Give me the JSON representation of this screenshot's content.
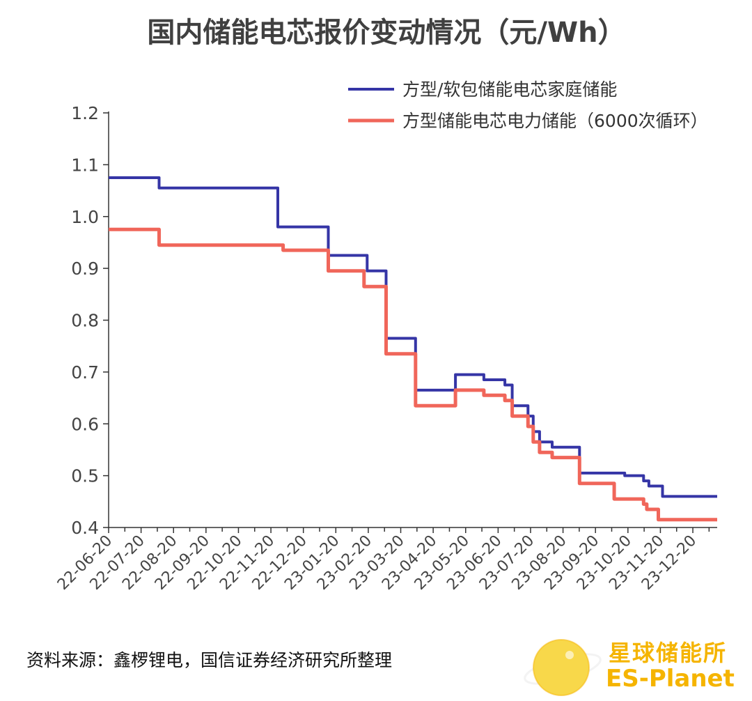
{
  "chart_data": {
    "type": "line",
    "title": "国内储能电芯报价变动情况（元/Wh）",
    "xlabel": "",
    "ylabel": "",
    "ylim": [
      0.4,
      1.2
    ],
    "yticks": [
      "0.4",
      "0.5",
      "0.6",
      "0.7",
      "0.8",
      "0.9",
      "1.0",
      "1.1",
      "1.2"
    ],
    "x_domain": [
      "2022-06-20",
      "2024-01-20"
    ],
    "xtick_labels": [
      "22-06-20",
      "22-07-20",
      "22-08-20",
      "22-09-20",
      "22-10-20",
      "22-11-20",
      "22-12-20",
      "23-01-20",
      "23-02-20",
      "23-03-20",
      "23-04-20",
      "23-05-20",
      "23-06-20",
      "23-07-20",
      "23-08-20",
      "23-09-20",
      "23-10-20",
      "23-11-20",
      "23-12-20"
    ],
    "legend_position": "top-right",
    "grid": false,
    "step": true,
    "series": [
      {
        "name": "方型/软包储能电芯家庭储能",
        "color": "#3535a6",
        "points": [
          [
            "2022-06-20",
            1.075
          ],
          [
            "2022-08-07",
            1.055
          ],
          [
            "2022-11-28",
            0.98
          ],
          [
            "2023-01-15",
            0.925
          ],
          [
            "2023-02-21",
            0.895
          ],
          [
            "2023-03-11",
            0.765
          ],
          [
            "2023-04-08",
            0.665
          ],
          [
            "2023-05-16",
            0.695
          ],
          [
            "2023-06-12",
            0.685
          ],
          [
            "2023-07-02",
            0.675
          ],
          [
            "2023-07-09",
            0.635
          ],
          [
            "2023-07-24",
            0.615
          ],
          [
            "2023-07-29",
            0.585
          ],
          [
            "2023-08-04",
            0.565
          ],
          [
            "2023-08-16",
            0.555
          ],
          [
            "2023-09-11",
            0.505
          ],
          [
            "2023-10-24",
            0.5
          ],
          [
            "2023-11-11",
            0.49
          ],
          [
            "2023-11-16",
            0.48
          ],
          [
            "2023-11-29",
            0.46
          ],
          [
            "2024-01-20",
            0.46
          ]
        ]
      },
      {
        "name": "方型储能电芯电力储能（6000次循环）",
        "color": "#f0665a",
        "points": [
          [
            "2022-06-20",
            0.975
          ],
          [
            "2022-08-07",
            0.945
          ],
          [
            "2022-12-03",
            0.935
          ],
          [
            "2023-01-15",
            0.895
          ],
          [
            "2023-02-18",
            0.865
          ],
          [
            "2023-03-11",
            0.735
          ],
          [
            "2023-04-08",
            0.635
          ],
          [
            "2023-05-16",
            0.665
          ],
          [
            "2023-06-12",
            0.655
          ],
          [
            "2023-07-02",
            0.645
          ],
          [
            "2023-07-09",
            0.615
          ],
          [
            "2023-07-24",
            0.595
          ],
          [
            "2023-07-29",
            0.565
          ],
          [
            "2023-08-04",
            0.545
          ],
          [
            "2023-08-16",
            0.535
          ],
          [
            "2023-09-11",
            0.485
          ],
          [
            "2023-10-14",
            0.455
          ],
          [
            "2023-11-11",
            0.445
          ],
          [
            "2023-11-14",
            0.435
          ],
          [
            "2023-11-25",
            0.415
          ],
          [
            "2024-01-20",
            0.415
          ]
        ]
      }
    ]
  },
  "source_note": "资料来源：鑫椤锂电，国信证券经济研究所整理",
  "watermark": {
    "name_cn": "星球储能所",
    "name_en": "ES-Planet",
    "color": "#f5b400"
  }
}
